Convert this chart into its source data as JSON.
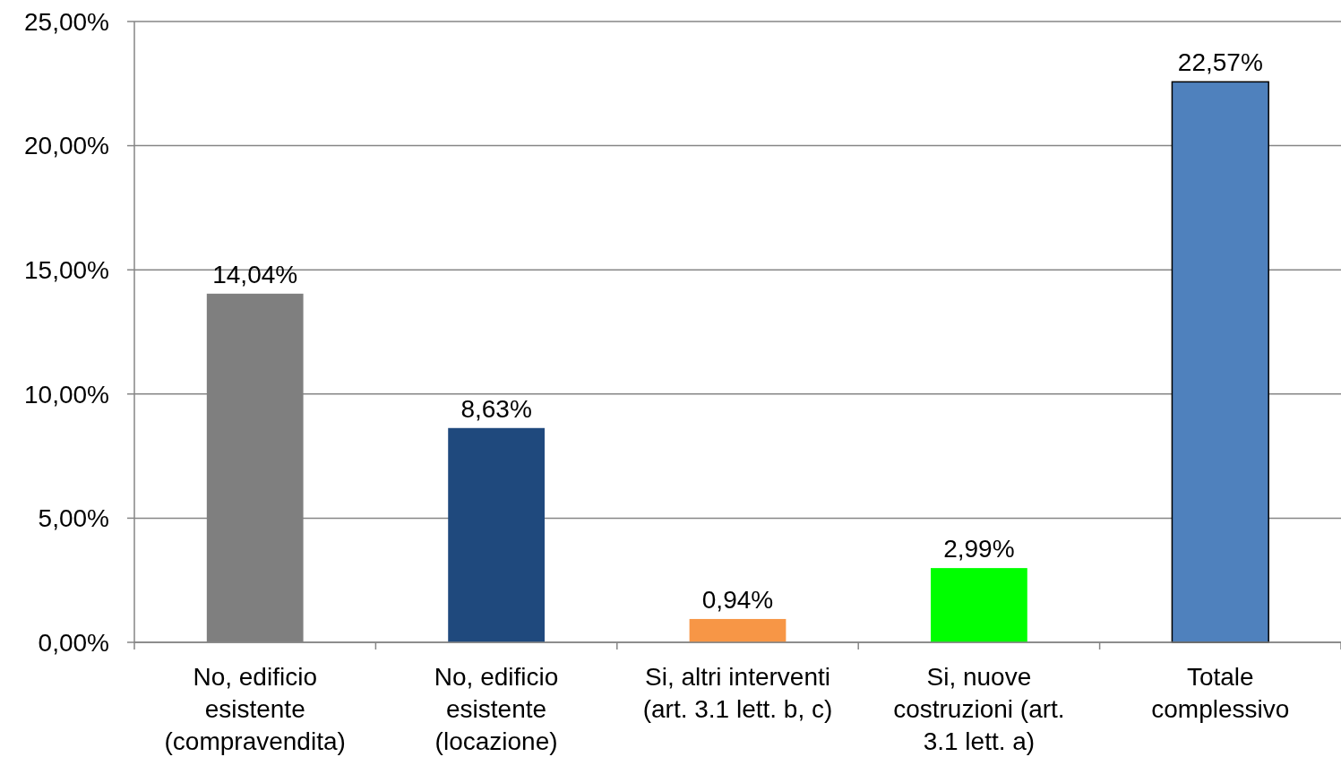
{
  "chart_data": {
    "type": "bar",
    "categories": [
      "No, edificio esistente (compravendita)",
      "No, edificio esistente (locazione)",
      "Si, altri interventi (art. 3.1 lett. b, c)",
      "Si, nuove costruzioni (art. 3.1 lett. a)",
      "Totale complessivo"
    ],
    "values": [
      14.04,
      8.63,
      0.94,
      2.99,
      22.57
    ],
    "colors": [
      "#7f7f7f",
      "#1f497d",
      "#f79646",
      "#00ff00",
      "#4f81bd"
    ],
    "value_labels": [
      "14,04%",
      "8,63%",
      "0,94%",
      "2,99%",
      "22,57%"
    ],
    "ylim": [
      0,
      25
    ],
    "yticks": [
      {
        "value": 0,
        "label": "0,00%"
      },
      {
        "value": 5,
        "label": "5,00%"
      },
      {
        "value": 10,
        "label": "10,00%"
      },
      {
        "value": 15,
        "label": "15,00%"
      },
      {
        "value": 20,
        "label": "20,00%"
      },
      {
        "value": 25,
        "label": "25,00%"
      }
    ],
    "grid": "y"
  }
}
